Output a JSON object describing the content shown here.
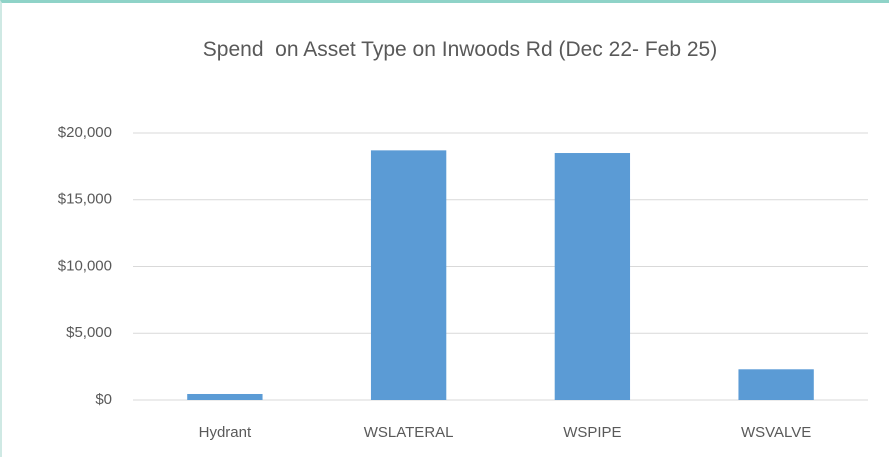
{
  "chart_data": {
    "type": "bar",
    "title": "Spend  on Asset Type on Inwoods Rd (Dec 22- Feb 25)",
    "categories": [
      "Hydrant",
      "WSLATERAL",
      "WSPIPE",
      "WSVALVE"
    ],
    "values": [
      450,
      18700,
      18500,
      2300
    ],
    "color": "#5b9bd5",
    "ylim": [
      0,
      20000
    ],
    "yticks": [
      {
        "value": 0,
        "label": "$0"
      },
      {
        "value": 5000,
        "label": "$5,000"
      },
      {
        "value": 10000,
        "label": "$10,000"
      },
      {
        "value": 15000,
        "label": "$15,000"
      },
      {
        "value": 20000,
        "label": "$20,000"
      }
    ],
    "grid": true
  }
}
